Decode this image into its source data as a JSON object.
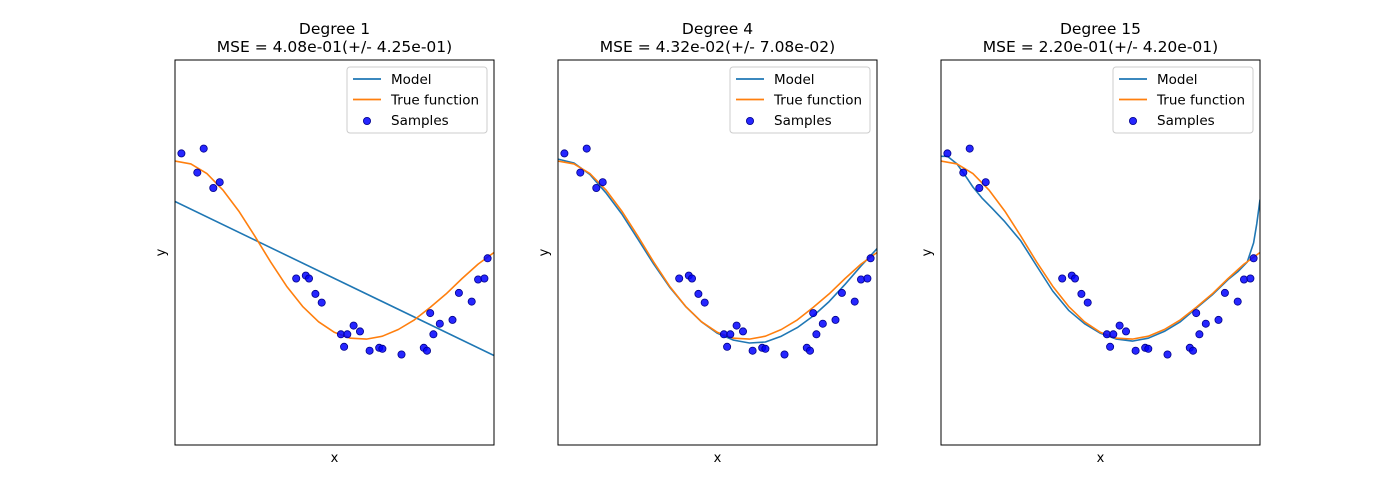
{
  "chart_data": [
    {
      "type": "line",
      "title": "Degree 1",
      "subtitle": "MSE = 4.08e-01(+/- 4.25e-01)",
      "xlabel": "x",
      "ylabel": "y",
      "xlim": [
        0,
        1
      ],
      "ylim": [
        -2,
        2
      ],
      "ticks": false,
      "grid": false,
      "legend": "top-right",
      "legend_entries": [
        "Model",
        "True function",
        "Samples"
      ],
      "colors": {
        "model": "#1f77b4",
        "true_function": "#ff7f0e",
        "samples": "#0000ff"
      },
      "model": {
        "x": [
          0,
          1
        ],
        "y": [
          0.53,
          -1.07
        ]
      }
    },
    {
      "type": "line",
      "title": "Degree 4",
      "subtitle": "MSE = 4.32e-02(+/- 7.08e-02)",
      "xlabel": "x",
      "ylabel": "y",
      "xlim": [
        0,
        1
      ],
      "ylim": [
        -2,
        2
      ],
      "ticks": false,
      "grid": false,
      "legend": "top-right",
      "legend_entries": [
        "Model",
        "True function",
        "Samples"
      ],
      "colors": {
        "model": "#1f77b4",
        "true_function": "#ff7f0e",
        "samples": "#0000ff"
      },
      "model": {
        "x": [
          0,
          0.05,
          0.1,
          0.15,
          0.2,
          0.25,
          0.3,
          0.35,
          0.4,
          0.45,
          0.5,
          0.55,
          0.6,
          0.65,
          0.7,
          0.75,
          0.8,
          0.85,
          0.9,
          0.95,
          1.0
        ],
        "y": [
          0.97,
          0.93,
          0.81,
          0.62,
          0.4,
          0.14,
          -0.12,
          -0.36,
          -0.56,
          -0.72,
          -0.84,
          -0.91,
          -0.94,
          -0.93,
          -0.87,
          -0.78,
          -0.66,
          -0.51,
          -0.33,
          -0.14,
          0.04
        ]
      }
    },
    {
      "type": "line",
      "title": "Degree 15",
      "subtitle": "MSE = 2.20e-01(+/- 4.20e-01)",
      "xlabel": "x",
      "ylabel": "y",
      "xlim": [
        0,
        1
      ],
      "ylim": [
        -2,
        2
      ],
      "ticks": false,
      "grid": false,
      "legend": "top-right",
      "legend_entries": [
        "Model",
        "True function",
        "Samples"
      ],
      "colors": {
        "model": "#1f77b4",
        "true_function": "#ff7f0e",
        "samples": "#0000ff"
      },
      "model": {
        "x": [
          0,
          0.02,
          0.05,
          0.08,
          0.1,
          0.13,
          0.16,
          0.2,
          0.25,
          0.3,
          0.35,
          0.4,
          0.45,
          0.5,
          0.55,
          0.6,
          0.65,
          0.7,
          0.75,
          0.8,
          0.85,
          0.9,
          0.93,
          0.96,
          0.98,
          0.99,
          1.0
        ],
        "y": [
          1.0,
          1.0,
          0.92,
          0.78,
          0.68,
          0.56,
          0.46,
          0.32,
          0.12,
          -0.14,
          -0.4,
          -0.6,
          -0.74,
          -0.84,
          -0.9,
          -0.92,
          -0.89,
          -0.82,
          -0.72,
          -0.58,
          -0.44,
          -0.28,
          -0.2,
          -0.1,
          0.1,
          0.3,
          0.55
        ]
      }
    }
  ],
  "shared": {
    "true_function": {
      "x": [
        0,
        0.05,
        0.1,
        0.15,
        0.2,
        0.25,
        0.3,
        0.35,
        0.4,
        0.45,
        0.5,
        0.55,
        0.6,
        0.65,
        0.7,
        0.75,
        0.8,
        0.85,
        0.9,
        0.95,
        1.0
      ],
      "y": [
        0.95,
        0.92,
        0.82,
        0.65,
        0.43,
        0.17,
        -0.1,
        -0.35,
        -0.56,
        -0.72,
        -0.83,
        -0.89,
        -0.9,
        -0.87,
        -0.8,
        -0.7,
        -0.57,
        -0.43,
        -0.27,
        -0.12,
        0.0
      ]
    },
    "samples": {
      "x": [
        0.02,
        0.07,
        0.09,
        0.12,
        0.14,
        0.38,
        0.41,
        0.42,
        0.44,
        0.46,
        0.52,
        0.53,
        0.54,
        0.56,
        0.58,
        0.61,
        0.64,
        0.65,
        0.71,
        0.78,
        0.79,
        0.8,
        0.81,
        0.83,
        0.87,
        0.89,
        0.93,
        0.95,
        0.97,
        0.98
      ],
      "y": [
        1.03,
        0.83,
        1.08,
        0.67,
        0.73,
        -0.27,
        -0.24,
        -0.27,
        -0.43,
        -0.52,
        -0.85,
        -0.98,
        -0.85,
        -0.76,
        -0.82,
        -1.02,
        -0.99,
        -1.0,
        -1.06,
        -0.99,
        -1.02,
        -0.63,
        -0.85,
        -0.74,
        -0.7,
        -0.42,
        -0.51,
        -0.28,
        -0.27,
        -0.06
      ]
    }
  }
}
